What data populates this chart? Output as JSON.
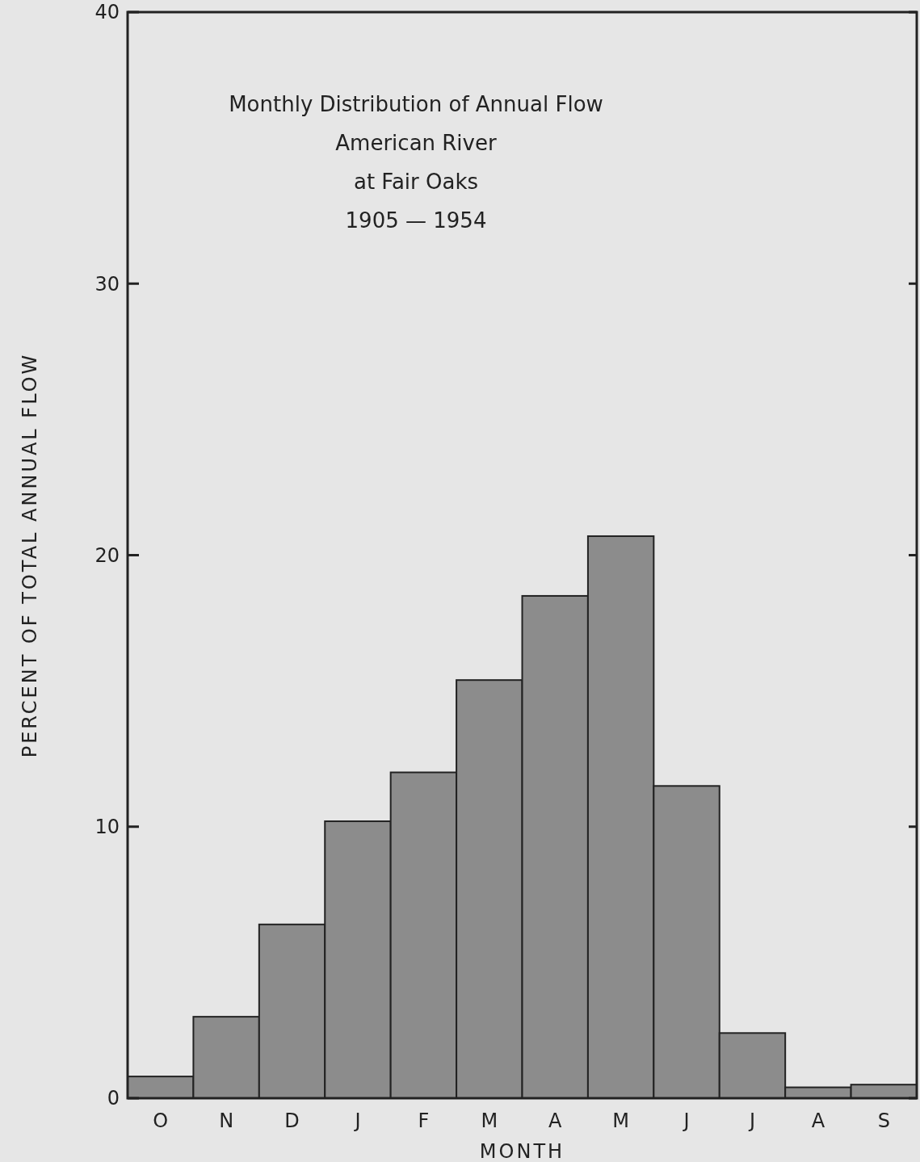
{
  "chart_data": {
    "type": "bar",
    "title": "Monthly Distribution of Annual Flow\nAmerican River\nat Fair Oaks\n1905 — 1954",
    "xlabel": "MONTH",
    "ylabel": "PERCENT OF TOTAL ANNUAL FLOW",
    "categories": [
      "O",
      "N",
      "D",
      "J",
      "F",
      "M",
      "A",
      "M",
      "J",
      "J",
      "A",
      "S"
    ],
    "values": [
      0.8,
      3.0,
      6.4,
      10.2,
      12.0,
      15.4,
      18.5,
      20.7,
      11.5,
      2.4,
      0.4,
      0.5
    ],
    "color": "#8c8c8c",
    "ylim": [
      0,
      40
    ],
    "yticks": [
      0,
      10,
      20,
      30,
      40
    ],
    "grid": false
  }
}
